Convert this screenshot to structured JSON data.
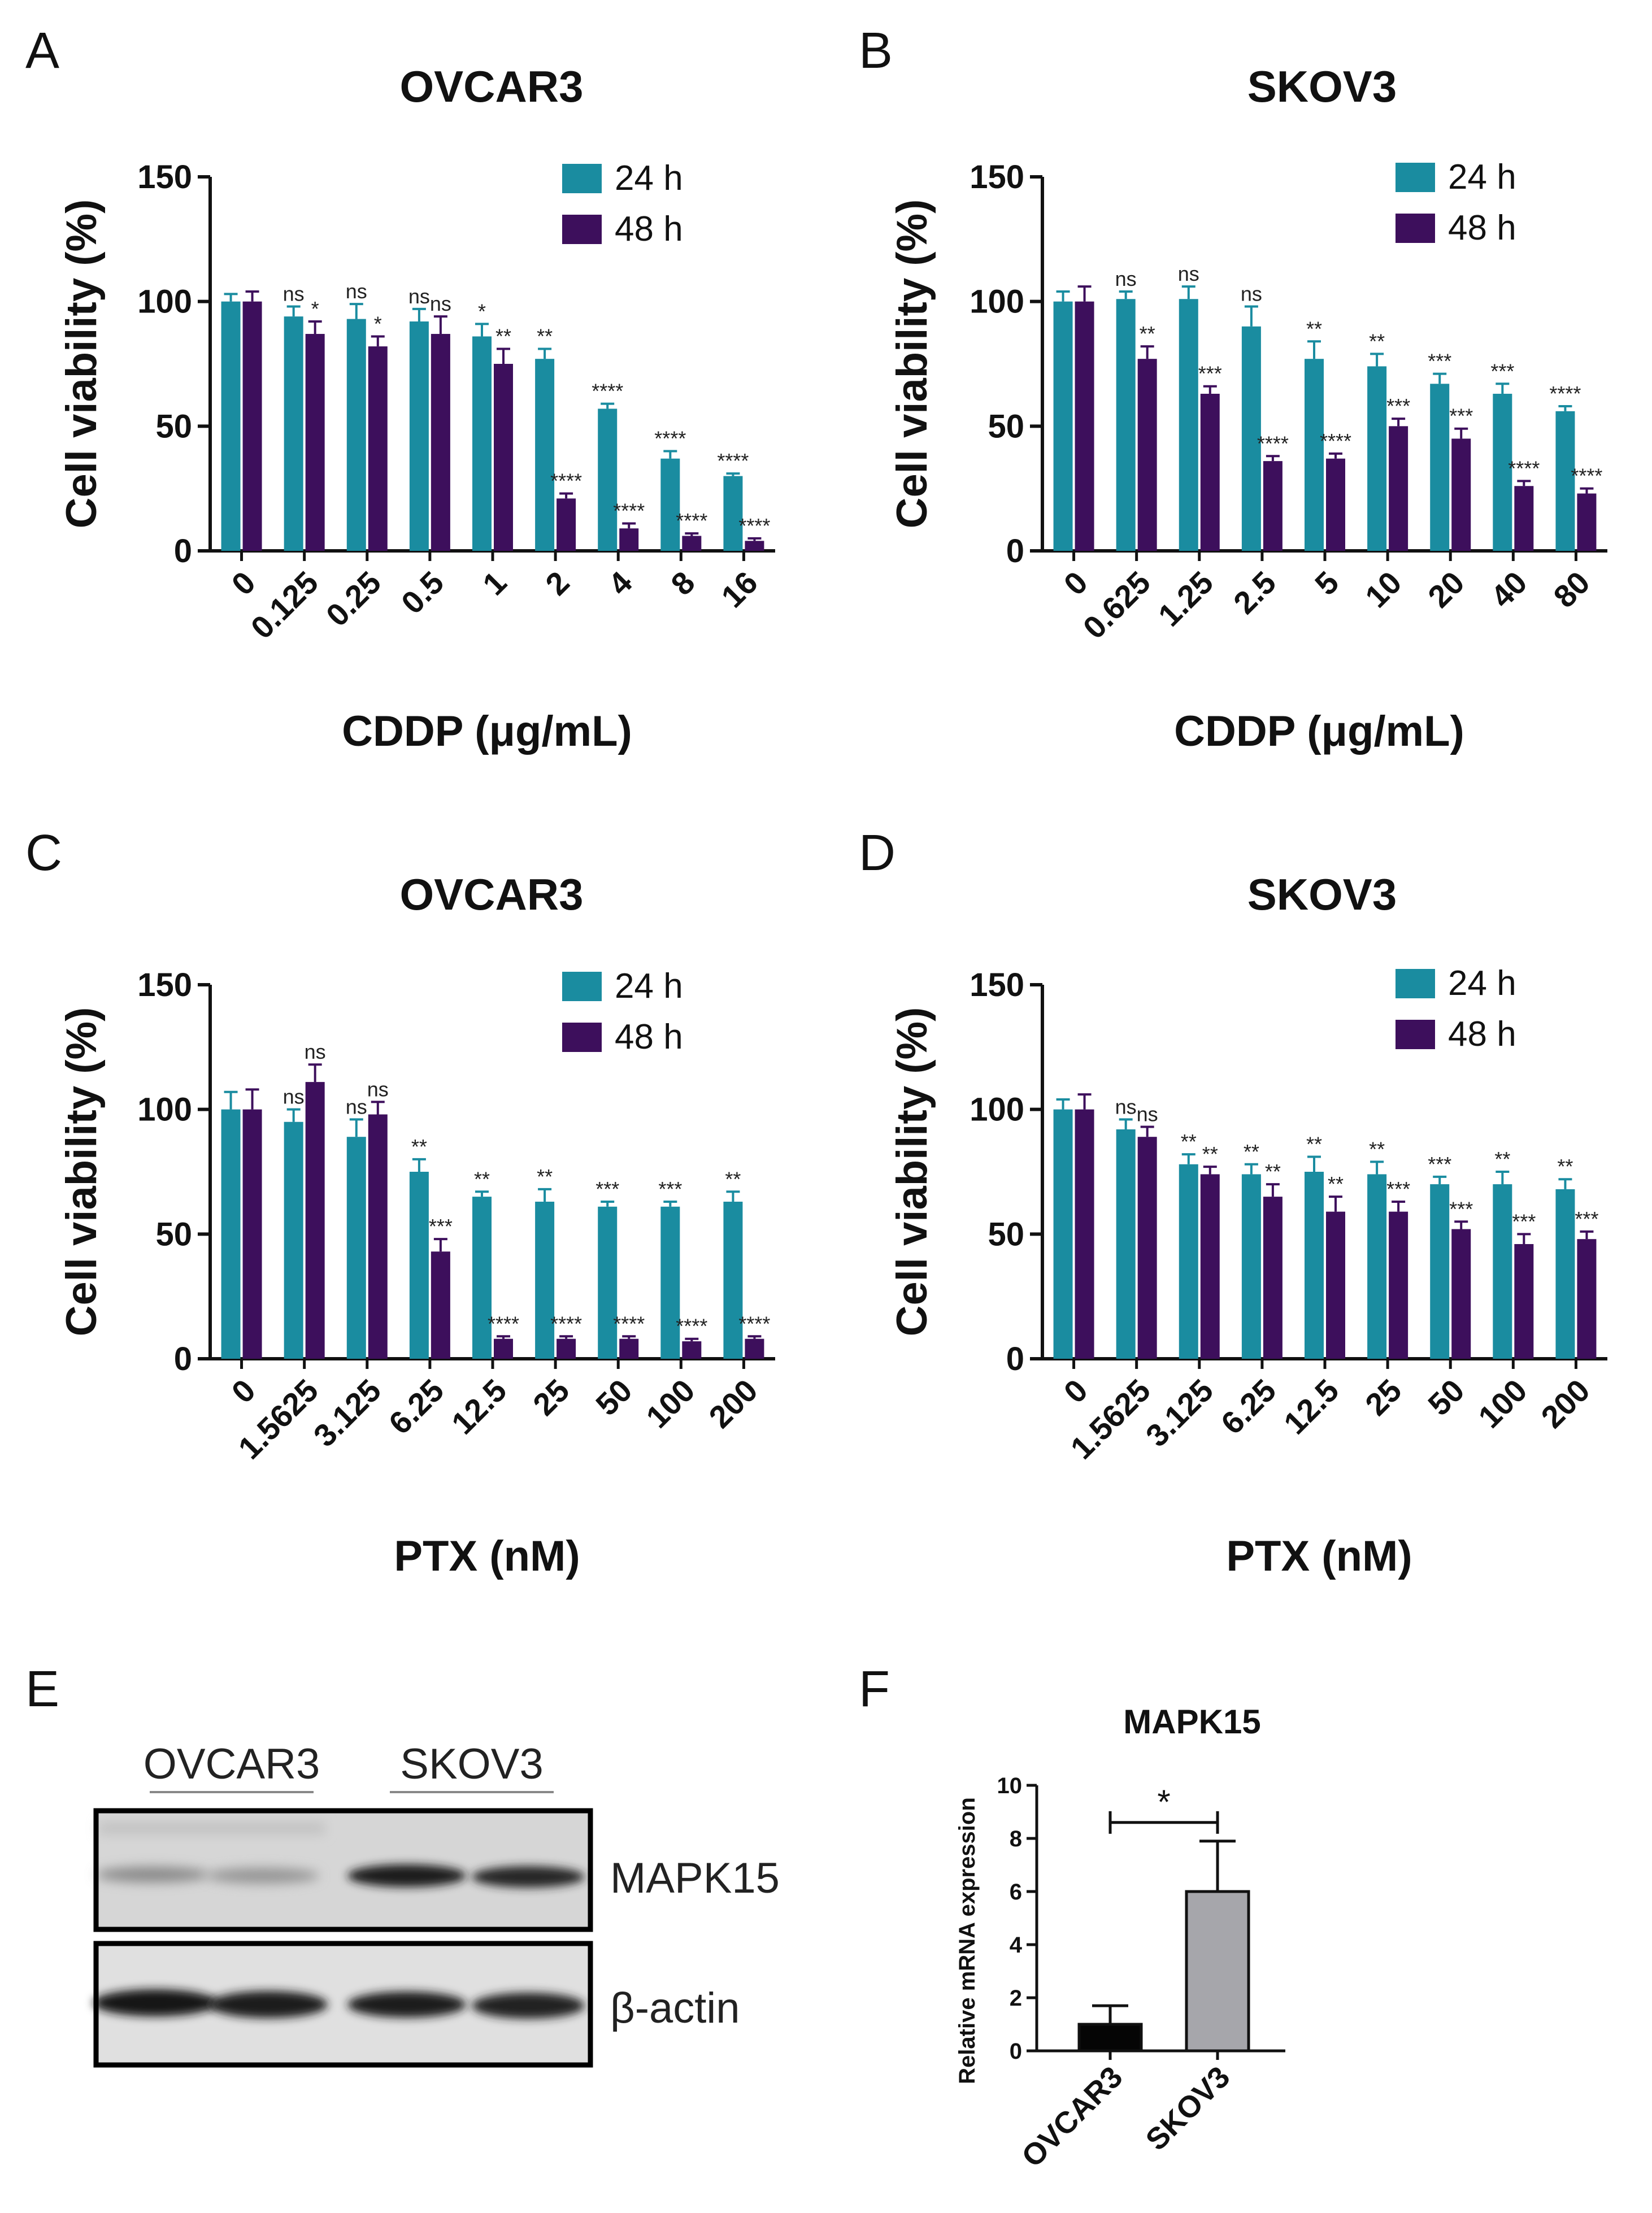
{
  "colors": {
    "h24": "#1a8ca0",
    "h48": "#3d0f5c",
    "axis": "#111111",
    "ovcar3_bar": "#050505",
    "skov3_bar": "#a6a6ab"
  },
  "chart_data": [
    {
      "panel": "A",
      "type": "bar",
      "title": "OVCAR3",
      "xlabel": "CDDP (μg/mL)",
      "ylabel": "Cell viability (%)",
      "ylim": [
        0,
        150
      ],
      "yticks": [
        0,
        50,
        100,
        150
      ],
      "legend_position": "top-right",
      "categories": [
        "0",
        "0.125",
        "0.25",
        "0.5",
        "1",
        "2",
        "4",
        "8",
        "16"
      ],
      "series": [
        {
          "name": "24 h",
          "values": [
            100,
            94,
            93,
            92,
            86,
            77,
            57,
            37,
            30
          ],
          "errors": [
            3,
            4,
            6,
            5,
            5,
            4,
            2,
            3,
            1
          ],
          "significance": [
            "",
            "ns",
            "ns",
            "ns",
            "*",
            "**",
            "****",
            "****",
            "****"
          ]
        },
        {
          "name": "48 h",
          "values": [
            100,
            87,
            82,
            87,
            75,
            21,
            9,
            6,
            4
          ],
          "errors": [
            4,
            5,
            4,
            7,
            6,
            2,
            2,
            1,
            1
          ],
          "significance": [
            "",
            "*",
            "*",
            "ns",
            "**",
            "****",
            "****",
            "****",
            "****"
          ]
        }
      ]
    },
    {
      "panel": "B",
      "type": "bar",
      "title": "SKOV3",
      "xlabel": "CDDP (μg/mL)",
      "ylabel": "Cell viability (%)",
      "ylim": [
        0,
        150
      ],
      "yticks": [
        0,
        50,
        100,
        150
      ],
      "legend_position": "top-right",
      "categories": [
        "0",
        "0.625",
        "1.25",
        "2.5",
        "5",
        "10",
        "20",
        "40",
        "80"
      ],
      "series": [
        {
          "name": "24 h",
          "values": [
            100,
            101,
            101,
            90,
            77,
            74,
            67,
            63,
            56
          ],
          "errors": [
            4,
            3,
            5,
            8,
            7,
            5,
            4,
            4,
            2
          ],
          "significance": [
            "",
            "ns",
            "ns",
            "ns",
            "**",
            "**",
            "***",
            "***",
            "****"
          ]
        },
        {
          "name": "48 h",
          "values": [
            100,
            77,
            63,
            36,
            37,
            50,
            45,
            26,
            23
          ],
          "errors": [
            6,
            5,
            3,
            2,
            2,
            3,
            4,
            2,
            2
          ],
          "significance": [
            "",
            "**",
            "***",
            "****",
            "****",
            "***",
            "***",
            "****",
            "****"
          ]
        }
      ]
    },
    {
      "panel": "C",
      "type": "bar",
      "title": "OVCAR3",
      "xlabel": "PTX (nM)",
      "ylabel": "Cell viability (%)",
      "ylim": [
        0,
        150
      ],
      "yticks": [
        0,
        50,
        100,
        150
      ],
      "legend_position": "top-right",
      "categories": [
        "0",
        "1.5625",
        "3.125",
        "6.25",
        "12.5",
        "25",
        "50",
        "100",
        "200"
      ],
      "series": [
        {
          "name": "24 h",
          "values": [
            100,
            95,
            89,
            75,
            65,
            63,
            61,
            61,
            63
          ],
          "errors": [
            7,
            5,
            7,
            5,
            2,
            5,
            2,
            2,
            4
          ],
          "significance": [
            "",
            "ns",
            "ns",
            "**",
            "**",
            "**",
            "***",
            "***",
            "**"
          ]
        },
        {
          "name": "48 h",
          "values": [
            100,
            111,
            98,
            43,
            8,
            8,
            8,
            7,
            8
          ],
          "errors": [
            8,
            7,
            5,
            5,
            1,
            1,
            1,
            1,
            1
          ],
          "significance": [
            "",
            "ns",
            "ns",
            "***",
            "****",
            "****",
            "****",
            "****",
            "****"
          ]
        }
      ]
    },
    {
      "panel": "D",
      "type": "bar",
      "title": "SKOV3",
      "xlabel": "PTX (nM)",
      "ylabel": "Cell viability (%)",
      "ylim": [
        0,
        150
      ],
      "yticks": [
        0,
        50,
        100,
        150
      ],
      "legend_position": "top-right",
      "categories": [
        "0",
        "1.5625",
        "3.125",
        "6.25",
        "12.5",
        "25",
        "50",
        "100",
        "200"
      ],
      "series": [
        {
          "name": "24 h",
          "values": [
            100,
            92,
            78,
            74,
            75,
            74,
            70,
            70,
            68
          ],
          "errors": [
            4,
            4,
            4,
            4,
            6,
            5,
            3,
            5,
            4
          ],
          "significance": [
            "",
            "ns",
            "**",
            "**",
            "**",
            "**",
            "***",
            "**",
            "**"
          ]
        },
        {
          "name": "48 h",
          "values": [
            100,
            89,
            74,
            65,
            59,
            59,
            52,
            46,
            48
          ],
          "errors": [
            6,
            4,
            3,
            5,
            6,
            4,
            3,
            4,
            3
          ],
          "significance": [
            "",
            "ns",
            "**",
            "**",
            "**",
            "***",
            "***",
            "***",
            "***"
          ]
        }
      ]
    },
    {
      "panel": "F",
      "type": "bar",
      "title": "MAPK15",
      "xlabel": "",
      "ylabel": "Relative mRNA expression",
      "ylim": [
        0,
        10
      ],
      "yticks": [
        0,
        2,
        4,
        6,
        8,
        10
      ],
      "categories": [
        "OVCAR3",
        "SKOV3"
      ],
      "values": [
        1.0,
        6.0
      ],
      "errors": [
        0.7,
        1.9
      ],
      "significance": "*"
    }
  ],
  "western_blot": {
    "panel": "E",
    "groups": [
      "OVCAR3",
      "SKOV3"
    ],
    "rows": [
      "MAPK15",
      "β-actin"
    ]
  }
}
